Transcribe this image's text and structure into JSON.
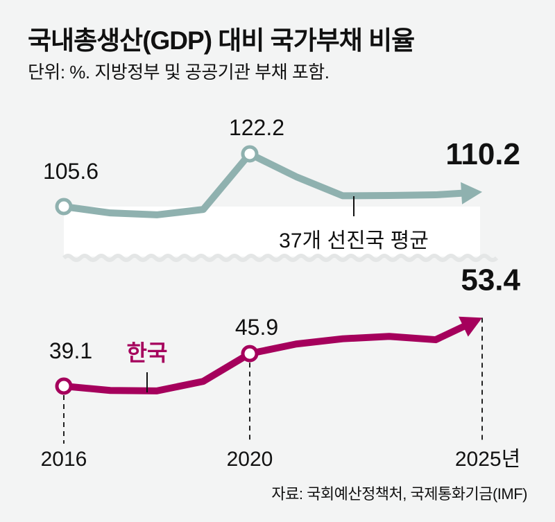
{
  "title": "국내총생산(GDP) 대비 국가부채 비율",
  "subtitle": "단위: %. 지방정부 및 공공기관 부채 포함.",
  "source": "자료: 국회예산정책처, 국제통화기금(IMF)",
  "chart_data": {
    "type": "line",
    "title": "국내총생산(GDP) 대비 국가부채 비율",
    "ylabel": "%",
    "x": [
      2016,
      2017,
      2018,
      2019,
      2020,
      2021,
      2022,
      2023,
      2024,
      2025
    ],
    "x_tick_labels": [
      "2016",
      "2020",
      "2025년"
    ],
    "y_axis_break": true,
    "grid": false,
    "series": [
      {
        "name": "37개 선진국 평균",
        "color": "#8fb1af",
        "values": [
          105.6,
          103.6,
          103.0,
          104.7,
          122.2,
          115.0,
          109.0,
          109.1,
          109.3,
          110.2
        ],
        "labels": {
          "2016": "105.6",
          "2020": "122.2",
          "2025": "110.2"
        }
      },
      {
        "name": "한국",
        "color": "#a5005c",
        "values": [
          39.1,
          38.2,
          38.1,
          40.1,
          45.9,
          47.9,
          49.0,
          49.5,
          48.8,
          53.4
        ],
        "labels": {
          "2016": "39.1",
          "2020": "45.9",
          "2025": "53.4"
        }
      }
    ]
  }
}
